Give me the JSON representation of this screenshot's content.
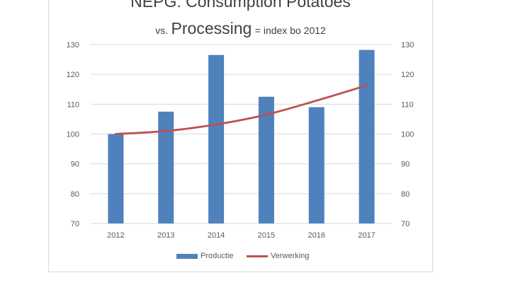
{
  "title": "NEPG: Consumption Potatoes",
  "subtitle": {
    "prefix": "vs.",
    "main": "Processing",
    "suffix": "= index bo 2012"
  },
  "colors": {
    "bars": "#4f81bd",
    "line": "#c0504d",
    "grid": "#d9d9d9",
    "text": "#595959"
  },
  "chart_data": {
    "type": "bar",
    "categories": [
      "2012",
      "2013",
      "2014",
      "2015",
      "2016",
      "2017"
    ],
    "series": [
      {
        "name": "Productie",
        "type": "bar",
        "values": [
          100,
          107.5,
          126.5,
          112.5,
          109,
          128.2
        ]
      },
      {
        "name": "Verwerking",
        "type": "line",
        "values": [
          100,
          101,
          103.2,
          106.5,
          111.2,
          116.3
        ]
      }
    ],
    "ylim": [
      70,
      130
    ],
    "yticks": [
      70,
      80,
      90,
      100,
      110,
      120,
      130
    ],
    "secondary_ylim": [
      70,
      130
    ],
    "grid": true,
    "legend": "bottom"
  }
}
